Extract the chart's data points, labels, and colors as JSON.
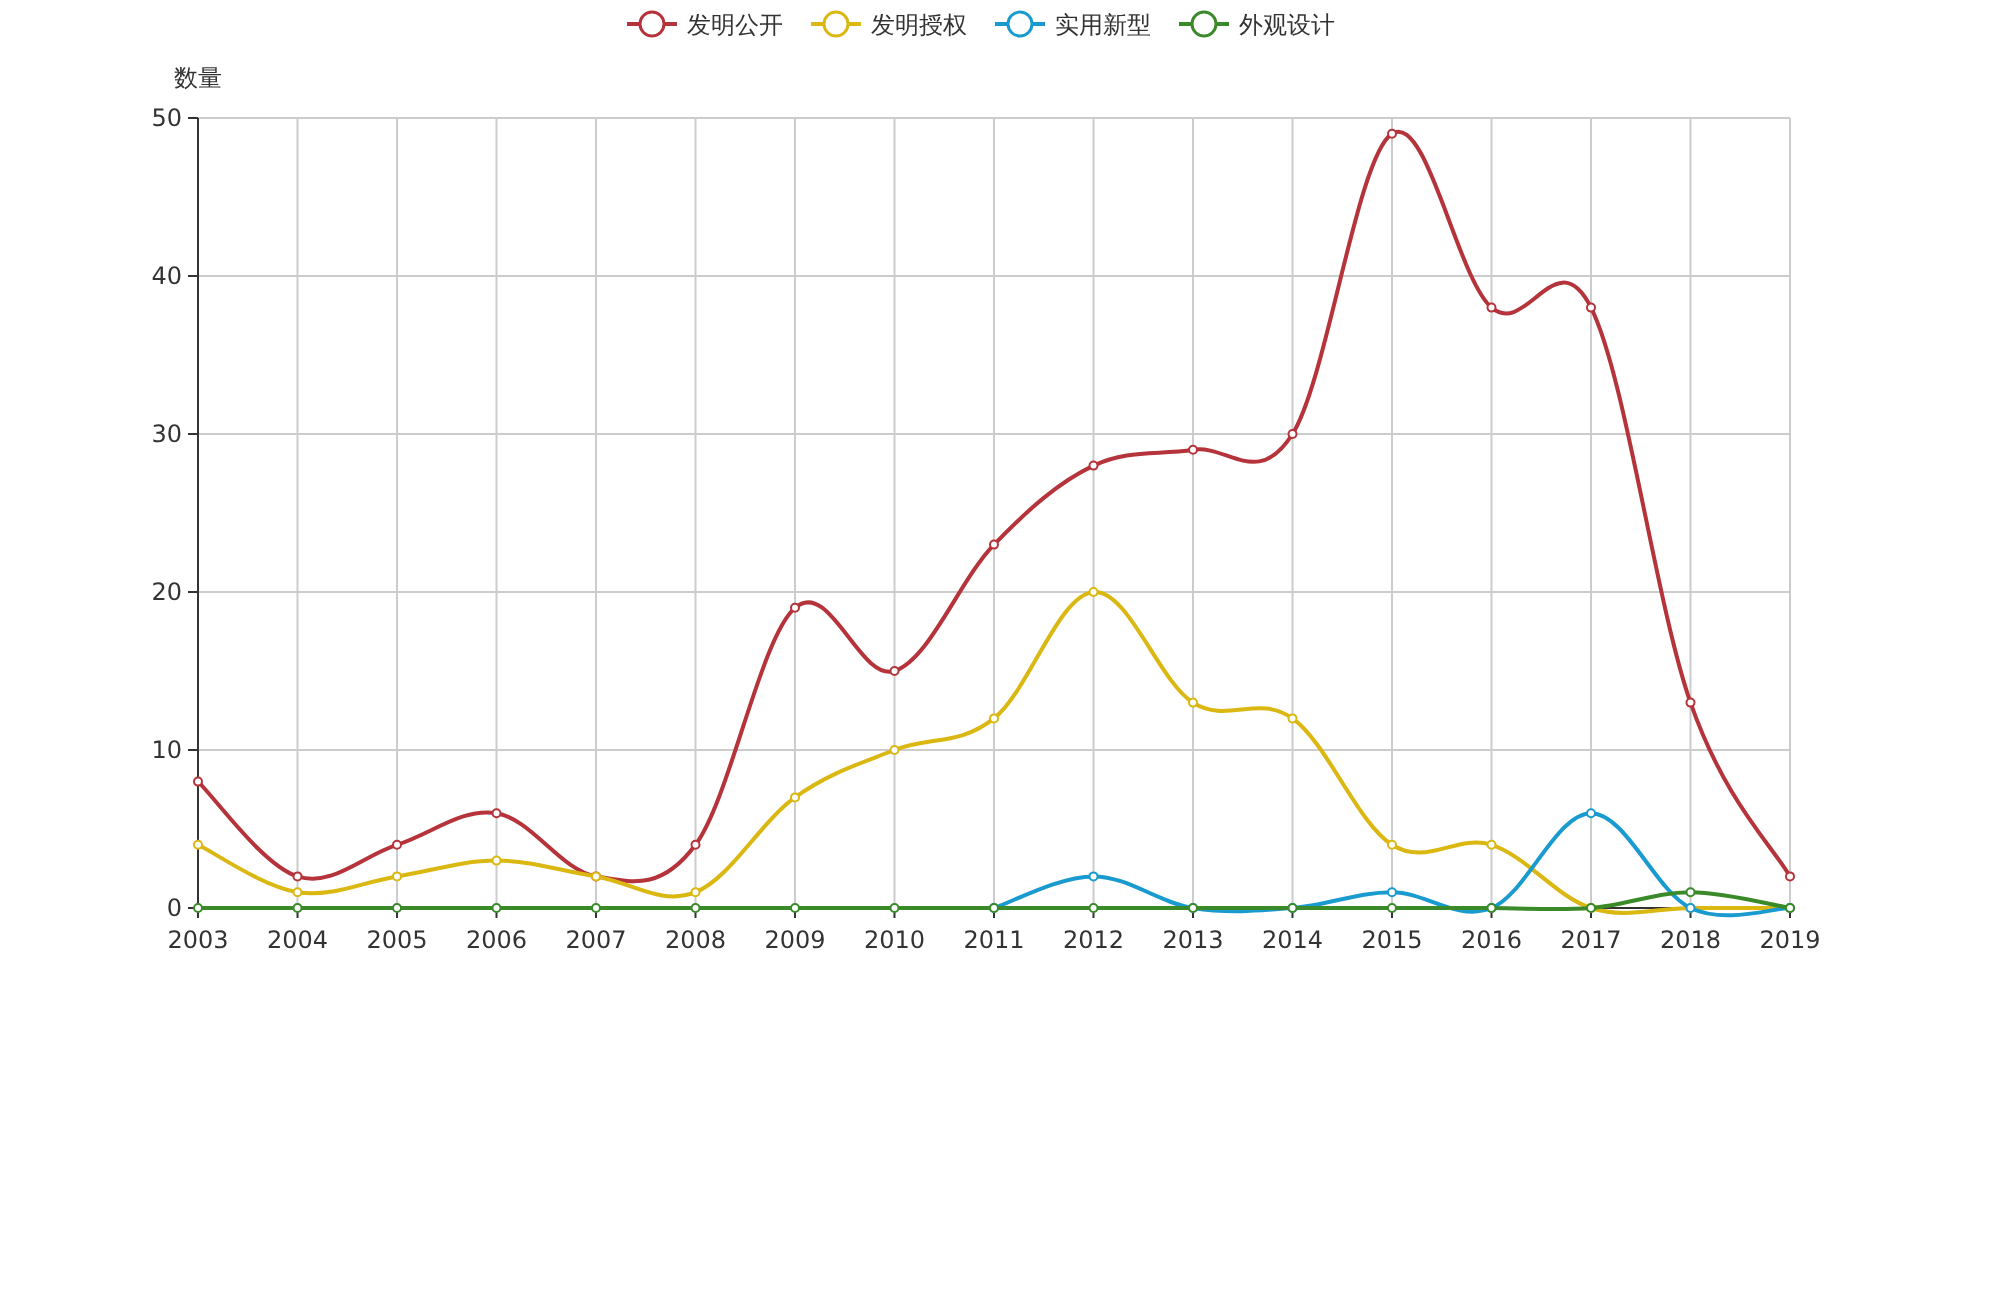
{
  "chart_data": {
    "type": "line",
    "ylabel": "数量",
    "categories": [
      "2003",
      "2004",
      "2005",
      "2006",
      "2007",
      "2008",
      "2009",
      "2010",
      "2011",
      "2012",
      "2013",
      "2014",
      "2015",
      "2016",
      "2017",
      "2018",
      "2019"
    ],
    "series": [
      {
        "name": "发明公开",
        "color": "#b5333a",
        "values": [
          8,
          2,
          4,
          6,
          2,
          4,
          19,
          15,
          23,
          28,
          29,
          30,
          49,
          38,
          38,
          13,
          2
        ]
      },
      {
        "name": "发明授权",
        "color": "#dbb711",
        "values": [
          4,
          1,
          2,
          3,
          2,
          1,
          7,
          10,
          12,
          20,
          13,
          12,
          4,
          4,
          0,
          0,
          0
        ]
      },
      {
        "name": "实用新型",
        "color": "#1a9bd0",
        "values": [
          null,
          null,
          null,
          null,
          null,
          null,
          null,
          null,
          0,
          2,
          0,
          0,
          1,
          0,
          6,
          0,
          0
        ]
      },
      {
        "name": "外观设计",
        "color": "#3a8a2a",
        "values": [
          0,
          0,
          0,
          0,
          0,
          0,
          0,
          0,
          0,
          0,
          0,
          0,
          0,
          0,
          0,
          1,
          0
        ]
      }
    ],
    "ylim": [
      0,
      50
    ],
    "yticks": [
      0,
      10,
      20,
      30,
      40,
      50
    ],
    "grid": true,
    "legend": "top",
    "marker": "circle"
  }
}
